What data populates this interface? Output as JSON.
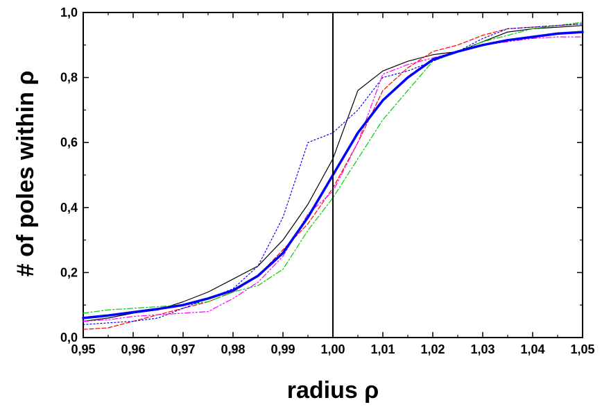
{
  "chart_data": {
    "type": "line",
    "title": "",
    "xlabel": "radius ρ",
    "ylabel": "# of poles within ρ",
    "xlim": [
      0.95,
      1.05
    ],
    "ylim": [
      0.0,
      1.0
    ],
    "x_ticks": [
      0.95,
      0.96,
      0.97,
      0.98,
      0.99,
      1.0,
      1.01,
      1.02,
      1.03,
      1.04,
      1.05
    ],
    "x_tick_labels": [
      "0,95",
      "0,96",
      "0,97",
      "0,98",
      "0,99",
      "1,00",
      "1,01",
      "1,02",
      "1,03",
      "1,04",
      "1,05"
    ],
    "y_ticks": [
      0.0,
      0.2,
      0.4,
      0.6,
      0.8,
      1.0
    ],
    "y_tick_labels": [
      "0,0",
      "0,2",
      "0,4",
      "0,6",
      "0,8",
      "1,0"
    ],
    "grid": false,
    "legend": "none",
    "vertical_line_x": 1.0,
    "series": [
      {
        "color": "#000000",
        "dash": "solid",
        "width": 1.2,
        "x": [
          0.95,
          0.955,
          0.96,
          0.965,
          0.97,
          0.975,
          0.98,
          0.985,
          0.99,
          0.995,
          1.0,
          1.005,
          1.01,
          1.015,
          1.02,
          1.025,
          1.03,
          1.035,
          1.04,
          1.045,
          1.05
        ],
        "y": [
          0.05,
          0.06,
          0.075,
          0.085,
          0.11,
          0.14,
          0.18,
          0.22,
          0.3,
          0.41,
          0.55,
          0.76,
          0.82,
          0.85,
          0.87,
          0.88,
          0.91,
          0.94,
          0.95,
          0.955,
          0.96
        ]
      },
      {
        "color": "#ff0000",
        "dash": "6,3",
        "width": 1.2,
        "x": [
          0.95,
          0.955,
          0.96,
          0.965,
          0.97,
          0.975,
          0.98,
          0.985,
          0.99,
          0.995,
          1.0,
          1.005,
          1.01,
          1.015,
          1.02,
          1.025,
          1.03,
          1.035,
          1.04,
          1.045,
          1.05
        ],
        "y": [
          0.025,
          0.03,
          0.05,
          0.07,
          0.09,
          0.11,
          0.14,
          0.19,
          0.27,
          0.35,
          0.46,
          0.6,
          0.76,
          0.83,
          0.88,
          0.9,
          0.93,
          0.95,
          0.955,
          0.96,
          0.965
        ]
      },
      {
        "color": "#00cc00",
        "dash": "8,3,2,3",
        "width": 1.2,
        "x": [
          0.95,
          0.955,
          0.96,
          0.965,
          0.97,
          0.975,
          0.98,
          0.985,
          0.99,
          0.995,
          1.0,
          1.005,
          1.01,
          1.015,
          1.02,
          1.025,
          1.03,
          1.035,
          1.04,
          1.045,
          1.05
        ],
        "y": [
          0.075,
          0.085,
          0.09,
          0.095,
          0.1,
          0.11,
          0.14,
          0.16,
          0.21,
          0.33,
          0.43,
          0.55,
          0.67,
          0.76,
          0.85,
          0.88,
          0.91,
          0.93,
          0.95,
          0.96,
          0.97
        ]
      },
      {
        "color": "#0000ff",
        "dash": "2,3",
        "width": 1.2,
        "x": [
          0.95,
          0.955,
          0.96,
          0.965,
          0.97,
          0.975,
          0.98,
          0.985,
          0.99,
          0.995,
          1.0,
          1.005,
          1.01,
          1.015,
          1.02,
          1.025,
          1.03,
          1.035,
          1.04,
          1.045,
          1.05
        ],
        "y": [
          0.04,
          0.045,
          0.05,
          0.06,
          0.09,
          0.12,
          0.15,
          0.22,
          0.37,
          0.6,
          0.63,
          0.7,
          0.8,
          0.82,
          0.85,
          0.88,
          0.92,
          0.95,
          0.955,
          0.96,
          0.965
        ]
      },
      {
        "color": "#ff00ff",
        "dash": "8,3,2,3,2,3",
        "width": 1.2,
        "x": [
          0.95,
          0.955,
          0.96,
          0.965,
          0.97,
          0.975,
          0.98,
          0.985,
          0.99,
          0.995,
          1.0,
          1.005,
          1.01,
          1.015,
          1.02,
          1.025,
          1.03,
          1.035,
          1.04,
          1.045,
          1.05
        ],
        "y": [
          0.05,
          0.055,
          0.065,
          0.07,
          0.075,
          0.08,
          0.12,
          0.17,
          0.25,
          0.38,
          0.45,
          0.6,
          0.81,
          0.84,
          0.86,
          0.88,
          0.9,
          0.91,
          0.92,
          0.925,
          0.925
        ]
      },
      {
        "color": "#0000ff",
        "dash": "solid",
        "width": 3.5,
        "x": [
          0.95,
          0.955,
          0.96,
          0.965,
          0.97,
          0.975,
          0.98,
          0.985,
          0.99,
          0.995,
          1.0,
          1.005,
          1.01,
          1.015,
          1.02,
          1.025,
          1.03,
          1.035,
          1.04,
          1.045,
          1.05
        ],
        "y": [
          0.06,
          0.068,
          0.078,
          0.088,
          0.1,
          0.12,
          0.145,
          0.19,
          0.26,
          0.37,
          0.5,
          0.63,
          0.73,
          0.8,
          0.855,
          0.88,
          0.9,
          0.915,
          0.925,
          0.935,
          0.94
        ]
      }
    ]
  }
}
